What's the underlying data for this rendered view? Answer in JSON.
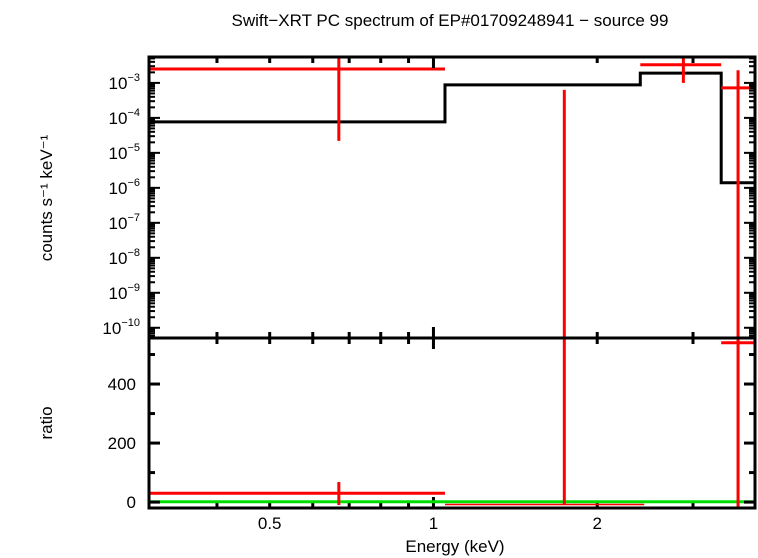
{
  "chart_data": [
    {
      "type": "scatter",
      "panel": "spectrum",
      "title": "Swift−XRT PC spectrum of EP#01709248941 − source 99",
      "xlabel": "Energy (keV)",
      "ylabel": "counts s⁻¹ keV⁻¹",
      "xscale": "log",
      "yscale": "log",
      "xlim": [
        0.3,
        3.9
      ],
      "ylim": [
        5.1e-11,
        0.0055
      ],
      "xticks": [
        {
          "value": 0.5,
          "label": "0.5"
        },
        {
          "value": 1,
          "label": "1"
        },
        {
          "value": 2,
          "label": "2"
        }
      ],
      "yticks": [
        {
          "value": 0.001,
          "base": "10",
          "exp": "−3"
        },
        {
          "value": 0.0001,
          "base": "10",
          "exp": "−4"
        },
        {
          "value": 1e-05,
          "base": "10",
          "exp": "−5"
        },
        {
          "value": 1e-06,
          "base": "10",
          "exp": "−6"
        },
        {
          "value": 1e-07,
          "base": "10",
          "exp": "−7"
        },
        {
          "value": 1e-08,
          "base": "10",
          "exp": "−8"
        },
        {
          "value": 1e-09,
          "base": "10",
          "exp": "−9"
        },
        {
          "value": 1e-10,
          "base": "10",
          "exp": "−10"
        }
      ],
      "data_points": [
        {
          "x": 0.67,
          "xlo": 0.3,
          "xhi": 1.05,
          "y": 0.0025,
          "ylo": 2.2e-05,
          "yhi": 0.006
        },
        {
          "x": 1.74,
          "xlo": 1.05,
          "xhi": 2.44,
          "y": null,
          "ylo": 1e-12,
          "yhi": 0.00063
        },
        {
          "x": 2.88,
          "xlo": 2.4,
          "xhi": 3.38,
          "y": 0.0033,
          "ylo": 0.001,
          "yhi": 0.006
        },
        {
          "x": 3.63,
          "xlo": 3.38,
          "xhi": 3.9,
          "y": 0.00072,
          "ylo": 1e-12,
          "yhi": 0.0023
        }
      ],
      "model_steps": [
        {
          "xlo": 0.3,
          "xhi": 1.05,
          "y": 7.7e-05
        },
        {
          "xlo": 1.05,
          "xhi": 2.4,
          "y": 0.00088
        },
        {
          "xlo": 2.4,
          "xhi": 3.38,
          "y": 0.0019
        },
        {
          "xlo": 3.38,
          "xhi": 3.9,
          "y": 1.4e-06
        }
      ],
      "colors": {
        "data": "#ff0000",
        "model": "#000000"
      }
    },
    {
      "type": "scatter",
      "panel": "ratio",
      "xlabel": "Energy (keV)",
      "ylabel": "ratio",
      "xscale": "log",
      "yscale": "linear",
      "xlim": [
        0.3,
        3.9
      ],
      "ylim": [
        -20,
        556
      ],
      "yticks": [
        {
          "value": 0,
          "label": "0"
        },
        {
          "value": 200,
          "label": "200"
        },
        {
          "value": 400,
          "label": "400"
        }
      ],
      "data_points": [
        {
          "x": 0.67,
          "xlo": 0.3,
          "xhi": 1.05,
          "y": 30,
          "ylo": -10,
          "yhi": 68
        },
        {
          "x": 1.74,
          "xlo": 1.05,
          "xhi": 2.44,
          "y": -8,
          "ylo": -8,
          "yhi": 600
        },
        {
          "x": 3.63,
          "xlo": 3.38,
          "xhi": 3.9,
          "y": 540,
          "ylo": -30,
          "yhi": 600
        }
      ],
      "reference_line": 1,
      "colors": {
        "data": "#ff0000",
        "reference": "#00e000"
      }
    }
  ]
}
